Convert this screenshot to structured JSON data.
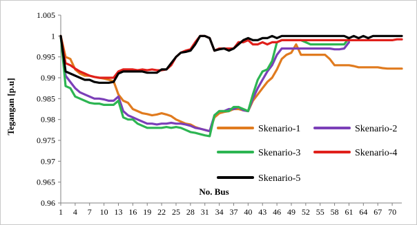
{
  "chart_data": {
    "type": "line",
    "ylabel": "Tegangan [p.u]",
    "xlabel": "No. Bus",
    "ylim": [
      0.96,
      1.005
    ],
    "xlim": [
      1,
      72
    ],
    "yticks": [
      0.96,
      0.965,
      0.97,
      0.975,
      0.98,
      0.985,
      0.99,
      0.995,
      1,
      1.005
    ],
    "yticklabels": [
      "0.96",
      "0.965",
      "0.97",
      "0.975",
      "0.98",
      "0.985",
      "0.99",
      "0.995",
      "1",
      "1.005"
    ],
    "xticks": [
      1,
      4,
      7,
      10,
      13,
      16,
      19,
      22,
      25,
      28,
      31,
      34,
      37,
      40,
      43,
      46,
      49,
      52,
      55,
      58,
      61,
      64,
      67,
      70
    ],
    "xticklabels": [
      "1",
      "4",
      "7",
      "10",
      "13",
      "16",
      "19",
      "22",
      "25",
      "28",
      "31",
      "34",
      "37",
      "40",
      "43",
      "46",
      "49",
      "52",
      "55",
      "58",
      "61",
      "64",
      "67",
      "70"
    ],
    "grid": false,
    "series": [
      {
        "name": "Skenario-1",
        "color": "#E07B1F",
        "x": [
          1,
          2,
          3,
          4,
          5,
          6,
          7,
          8,
          9,
          10,
          11,
          12,
          13,
          14,
          15,
          16,
          17,
          18,
          19,
          20,
          21,
          22,
          23,
          24,
          25,
          26,
          27,
          28,
          29,
          30,
          31,
          32,
          33,
          34,
          35,
          36,
          37,
          38,
          39,
          40,
          41,
          42,
          43,
          44,
          45,
          46,
          47,
          48,
          49,
          50,
          51,
          52,
          53,
          54,
          55,
          56,
          57,
          58,
          59,
          60,
          61,
          62,
          63,
          64,
          65,
          66,
          67,
          68,
          69,
          70,
          71,
          72
        ],
        "values": [
          1.0,
          0.995,
          0.9945,
          0.992,
          0.991,
          0.9905,
          0.9905,
          0.9902,
          0.99,
          0.9898,
          0.9895,
          0.9892,
          0.986,
          0.9845,
          0.984,
          0.9825,
          0.982,
          0.9815,
          0.9813,
          0.981,
          0.9812,
          0.9815,
          0.9812,
          0.9808,
          0.98,
          0.9795,
          0.979,
          0.9788,
          0.9782,
          0.9778,
          0.9775,
          0.9772,
          0.9805,
          0.9815,
          0.9818,
          0.982,
          0.9825,
          0.9825,
          0.9822,
          0.982,
          0.9845,
          0.986,
          0.9875,
          0.989,
          0.99,
          0.992,
          0.9945,
          0.9955,
          0.996,
          0.998,
          0.9955,
          0.9955,
          0.9955,
          0.9955,
          0.9955,
          0.9955,
          0.9945,
          0.993,
          0.993,
          0.993,
          0.993,
          0.9928,
          0.9925,
          0.9925,
          0.9925,
          0.9925,
          0.9925,
          0.9923,
          0.9922,
          0.9922,
          0.9922,
          0.9922
        ]
      },
      {
        "name": "Skenario-2",
        "color": "#7B3FB8",
        "x": [
          1,
          2,
          3,
          4,
          5,
          6,
          7,
          8,
          9,
          10,
          11,
          12,
          13,
          14,
          15,
          16,
          17,
          18,
          19,
          20,
          21,
          22,
          23,
          24,
          25,
          26,
          27,
          28,
          29,
          30,
          31,
          32,
          33,
          34,
          35,
          36,
          37,
          38,
          39,
          40,
          41,
          42,
          43,
          44,
          45,
          46,
          47,
          48,
          49,
          50,
          51,
          52,
          53,
          54,
          55,
          56,
          57,
          58,
          59,
          60,
          61
        ],
        "values": [
          1.0,
          0.9905,
          0.989,
          0.9875,
          0.9865,
          0.986,
          0.9855,
          0.985,
          0.985,
          0.9848,
          0.9845,
          0.9845,
          0.9855,
          0.982,
          0.981,
          0.9805,
          0.98,
          0.9795,
          0.979,
          0.979,
          0.9788,
          0.979,
          0.979,
          0.9792,
          0.979,
          0.979,
          0.9788,
          0.9785,
          0.978,
          0.9778,
          0.9775,
          0.9772,
          0.981,
          0.982,
          0.982,
          0.9825,
          0.9825,
          0.983,
          0.9822,
          0.982,
          0.985,
          0.9875,
          0.9895,
          0.9915,
          0.993,
          0.9955,
          0.997,
          0.997,
          0.997,
          0.997,
          0.997,
          0.997,
          0.997,
          0.997,
          0.997,
          0.997,
          0.997,
          0.9968,
          0.9968,
          0.997,
          0.9985
        ]
      },
      {
        "name": "Skenario-3",
        "color": "#2DB552",
        "x": [
          1,
          2,
          3,
          4,
          5,
          6,
          7,
          8,
          9,
          10,
          11,
          12,
          13,
          14,
          15,
          16,
          17,
          18,
          19,
          20,
          21,
          22,
          23,
          24,
          25,
          26,
          27,
          28,
          29,
          30,
          31,
          32,
          33,
          34,
          35,
          36,
          37,
          38,
          39,
          40,
          41,
          42,
          43,
          44,
          45,
          46,
          47,
          48,
          49,
          50,
          51,
          52,
          53,
          54,
          55,
          56,
          57,
          58,
          59,
          60,
          61
        ],
        "values": [
          1.0,
          0.988,
          0.9875,
          0.9855,
          0.985,
          0.9845,
          0.984,
          0.9838,
          0.9838,
          0.9835,
          0.9835,
          0.9835,
          0.9845,
          0.9805,
          0.98,
          0.98,
          0.979,
          0.9785,
          0.978,
          0.978,
          0.978,
          0.978,
          0.9782,
          0.978,
          0.9782,
          0.978,
          0.9775,
          0.977,
          0.9768,
          0.9765,
          0.9762,
          0.976,
          0.981,
          0.982,
          0.982,
          0.982,
          0.983,
          0.983,
          0.9825,
          0.982,
          0.986,
          0.9895,
          0.9915,
          0.992,
          0.994,
          0.9985,
          0.999,
          0.999,
          0.999,
          0.999,
          0.999,
          0.9985,
          0.998,
          0.998,
          0.998,
          0.998,
          0.998,
          0.998,
          0.998,
          0.998,
          0.9995
        ]
      },
      {
        "name": "Skenario-4",
        "color": "#E0201B",
        "x": [
          1,
          2,
          3,
          4,
          5,
          6,
          7,
          8,
          9,
          10,
          11,
          12,
          13,
          14,
          15,
          16,
          17,
          18,
          19,
          20,
          21,
          22,
          23,
          24,
          25,
          26,
          27,
          28,
          29,
          30,
          31,
          32,
          33,
          34,
          35,
          36,
          37,
          38,
          39,
          40,
          41,
          42,
          43,
          44,
          45,
          46,
          47,
          48,
          49,
          50,
          51,
          52,
          53,
          54,
          55,
          56,
          57,
          58,
          59,
          60,
          61,
          62,
          63,
          64,
          65,
          66,
          67,
          68,
          69,
          70,
          71,
          72
        ],
        "values": [
          1.0,
          0.9935,
          0.993,
          0.9922,
          0.9915,
          0.991,
          0.9905,
          0.9902,
          0.99,
          0.99,
          0.99,
          0.99,
          0.9915,
          0.992,
          0.992,
          0.992,
          0.9918,
          0.992,
          0.9918,
          0.992,
          0.9918,
          0.9918,
          0.992,
          0.993,
          0.995,
          0.996,
          0.9965,
          0.9968,
          0.9985,
          1.0,
          1.0,
          0.9995,
          0.9965,
          0.997,
          0.997,
          0.997,
          0.997,
          0.9985,
          0.9985,
          0.999,
          0.998,
          0.998,
          0.9985,
          0.998,
          0.9985,
          0.9985,
          0.999,
          0.999,
          0.999,
          0.999,
          0.999,
          0.999,
          0.999,
          0.999,
          0.999,
          0.999,
          0.999,
          0.999,
          0.999,
          0.999,
          0.999,
          0.999,
          0.999,
          0.999,
          0.999,
          0.999,
          0.999,
          0.999,
          0.999,
          0.999,
          0.9992,
          0.9992
        ]
      },
      {
        "name": "Skenario-5",
        "color": "#000000",
        "x": [
          1,
          2,
          3,
          4,
          5,
          6,
          7,
          8,
          9,
          10,
          11,
          12,
          13,
          14,
          15,
          16,
          17,
          18,
          19,
          20,
          21,
          22,
          23,
          24,
          25,
          26,
          27,
          28,
          29,
          30,
          31,
          32,
          33,
          34,
          35,
          36,
          37,
          38,
          39,
          40,
          41,
          42,
          43,
          44,
          45,
          46,
          47,
          48,
          49,
          50,
          51,
          52,
          53,
          54,
          55,
          56,
          57,
          58,
          59,
          60,
          61,
          62,
          63,
          64,
          65,
          66,
          67,
          68,
          69,
          70,
          71,
          72
        ],
        "values": [
          1.0,
          0.9915,
          0.991,
          0.9905,
          0.99,
          0.9895,
          0.9895,
          0.989,
          0.9888,
          0.9888,
          0.9888,
          0.989,
          0.991,
          0.9915,
          0.9915,
          0.9915,
          0.9915,
          0.9915,
          0.9912,
          0.9912,
          0.9912,
          0.992,
          0.992,
          0.9935,
          0.995,
          0.996,
          0.9962,
          0.9965,
          0.998,
          1.0,
          1.0,
          0.9995,
          0.9965,
          0.9968,
          0.997,
          0.9965,
          0.997,
          0.998,
          0.999,
          0.9995,
          0.999,
          0.999,
          0.9995,
          0.9995,
          1.0,
          0.9995,
          1.0,
          1.0,
          1.0,
          1.0,
          1.0,
          1.0,
          1.0,
          1.0,
          1.0,
          1.0,
          1.0,
          1.0,
          1.0,
          1.0,
          0.9995,
          1.0,
          0.9995,
          1.0,
          0.9995,
          1.0,
          1.0,
          1.0,
          1.0,
          1.0,
          1.0,
          1.0
        ]
      }
    ]
  }
}
